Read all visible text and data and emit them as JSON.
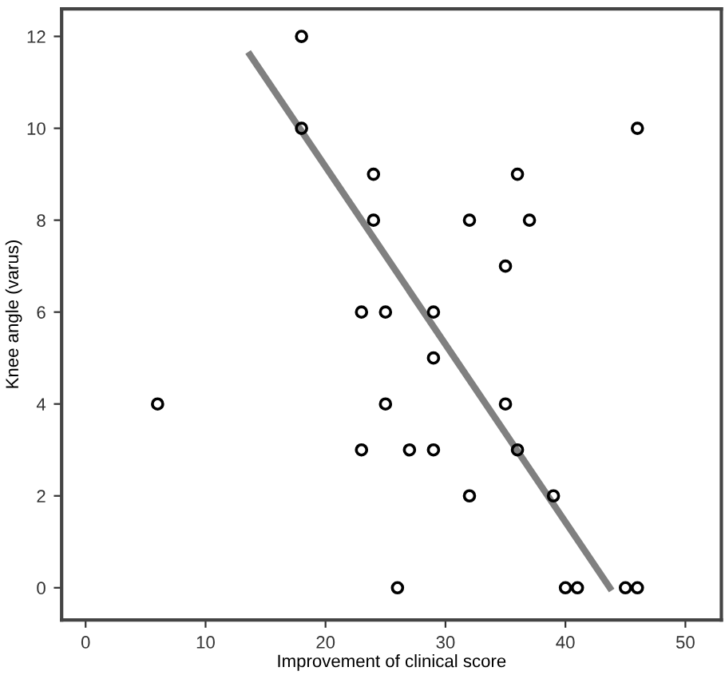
{
  "chart_data": {
    "type": "scatter",
    "xlabel": "Improvement of clinical score",
    "ylabel": "Knee angle (varus)",
    "xlim": [
      -2,
      53
    ],
    "ylim": [
      -0.7,
      12.6
    ],
    "xticks": [
      0,
      10,
      20,
      30,
      40,
      50
    ],
    "yticks": [
      0,
      2,
      4,
      6,
      8,
      10,
      12
    ],
    "grid": false,
    "series": [
      {
        "marker": "circle",
        "color": "#000000",
        "x": [
          18,
          18,
          24,
          36,
          24,
          32,
          37,
          35,
          23,
          25,
          29,
          29,
          6,
          25,
          35,
          23,
          27,
          29,
          36,
          32,
          39,
          26,
          40,
          41,
          45,
          46,
          46
        ],
        "values": [
          12,
          10,
          9,
          9,
          8,
          8,
          8,
          7,
          6,
          6,
          6,
          5,
          4,
          4,
          4,
          3,
          3,
          3,
          3,
          2,
          2,
          0,
          0,
          0,
          0,
          0,
          10
        ]
      },
      {
        "type": "line",
        "marker": "none",
        "color": "#808080",
        "x": [
          13.7,
          43.7
        ],
        "values": [
          11.6,
          0.0
        ]
      }
    ]
  }
}
